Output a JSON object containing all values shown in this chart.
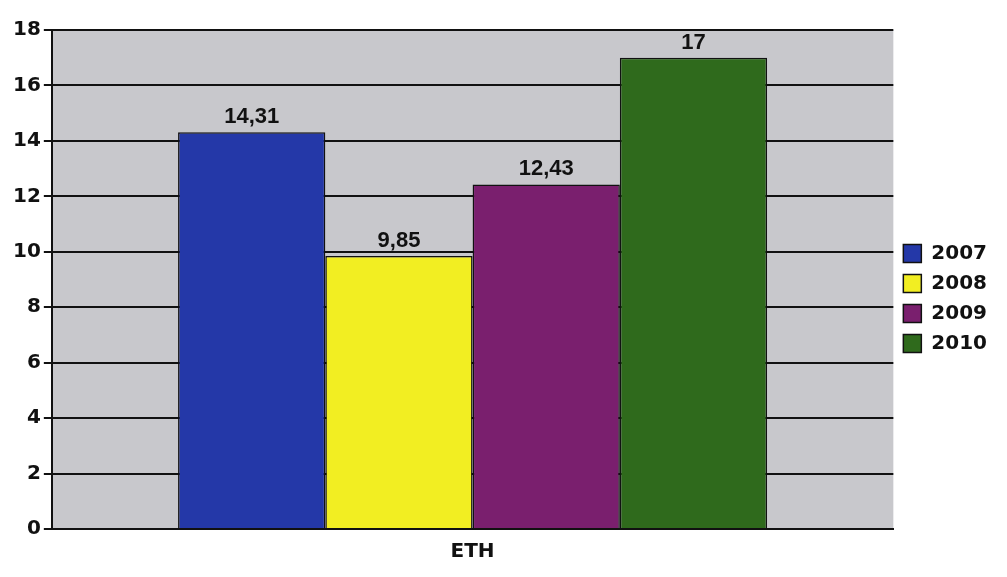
{
  "chart_data": {
    "type": "bar",
    "xlabel": null,
    "categories": [
      "ETH"
    ],
    "series": [
      {
        "name": "2007",
        "color": "#2438a8",
        "values": [
          14.31
        ],
        "value_labels": [
          "14,31"
        ]
      },
      {
        "name": "2008",
        "color": "#f2ee22",
        "values": [
          9.85
        ],
        "value_labels": [
          "9,85"
        ]
      },
      {
        "name": "2009",
        "color": "#7a1f6e",
        "values": [
          12.43
        ],
        "value_labels": [
          "12,43"
        ]
      },
      {
        "name": "2010",
        "color": "#2f6a1c",
        "values": [
          17
        ],
        "value_labels": [
          "17"
        ]
      }
    ],
    "ylim": [
      0,
      18
    ],
    "yticks": [
      0,
      2,
      4,
      6,
      8,
      10,
      12,
      14,
      16,
      18
    ],
    "grid": "y",
    "legend": "right"
  }
}
